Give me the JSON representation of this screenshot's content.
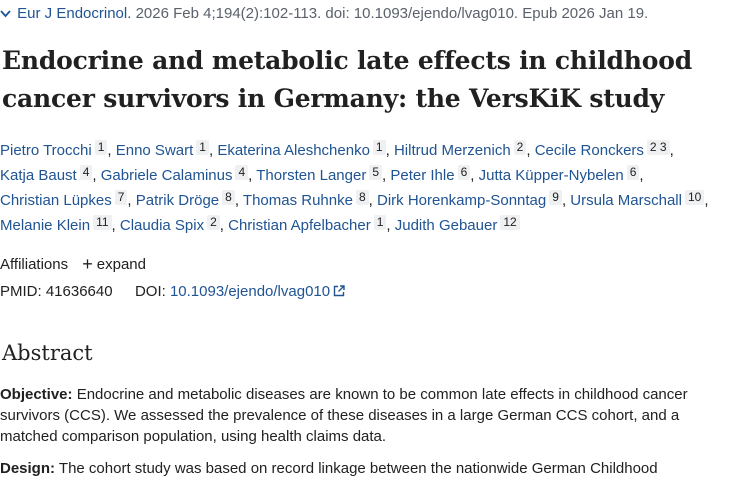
{
  "citation": {
    "journal": "Eur J Endocrinol.",
    "details": "2026 Feb 4;194(2):102-113. doi: 10.1093/ejendo/lvag010. Epub 2026 Jan 19."
  },
  "article": {
    "title": "Endocrine and metabolic late effects in childhood cancer survivors in Germany: the VersKiK study"
  },
  "authors": [
    {
      "name": "Pietro Trocchi",
      "aff": "1"
    },
    {
      "name": "Enno Swart",
      "aff": "1"
    },
    {
      "name": "Ekaterina Aleshchenko",
      "aff": "1"
    },
    {
      "name": "Hiltrud Merzenich",
      "aff": "2"
    },
    {
      "name": "Cecile Ronckers",
      "aff": "2 3"
    },
    {
      "name": "Katja Baust",
      "aff": "4"
    },
    {
      "name": "Gabriele Calaminus",
      "aff": "4"
    },
    {
      "name": "Thorsten Langer",
      "aff": "5"
    },
    {
      "name": "Peter Ihle",
      "aff": "6"
    },
    {
      "name": "Jutta Küpper-Nybelen",
      "aff": "6"
    },
    {
      "name": "Christian Lüpkes",
      "aff": "7"
    },
    {
      "name": "Patrik Dröge",
      "aff": "8"
    },
    {
      "name": "Thomas Ruhnke",
      "aff": "8"
    },
    {
      "name": "Dirk Horenkamp-Sonntag",
      "aff": "9"
    },
    {
      "name": "Ursula Marschall",
      "aff": "10"
    },
    {
      "name": "Melanie Klein",
      "aff": "11"
    },
    {
      "name": "Claudia Spix",
      "aff": "2"
    },
    {
      "name": "Christian Apfelbacher",
      "aff": "1"
    },
    {
      "name": "Judith Gebauer",
      "aff": "12"
    }
  ],
  "affiliations": {
    "label": "Affiliations",
    "expand_label": "expand"
  },
  "ids": {
    "pmid_label": "PMID:",
    "pmid": "41636640",
    "doi_label": "DOI:",
    "doi": "10.1093/ejendo/lvag010"
  },
  "abstract": {
    "heading": "Abstract",
    "sections": [
      {
        "label": "Objective:",
        "text": "Endocrine and metabolic diseases are known to be common late effects in childhood cancer survivors (CCS). We assessed the prevalence of these diseases in a large German CCS cohort, and a matched comparison population, using health claims data."
      },
      {
        "label": "Design:",
        "text": "The cohort study was based on record linkage between the nationwide German Childhood"
      }
    ]
  },
  "colors": {
    "link": "#205493",
    "text": "#212121",
    "muted": "#5b616b",
    "badge_bg": "#eef0f2"
  }
}
